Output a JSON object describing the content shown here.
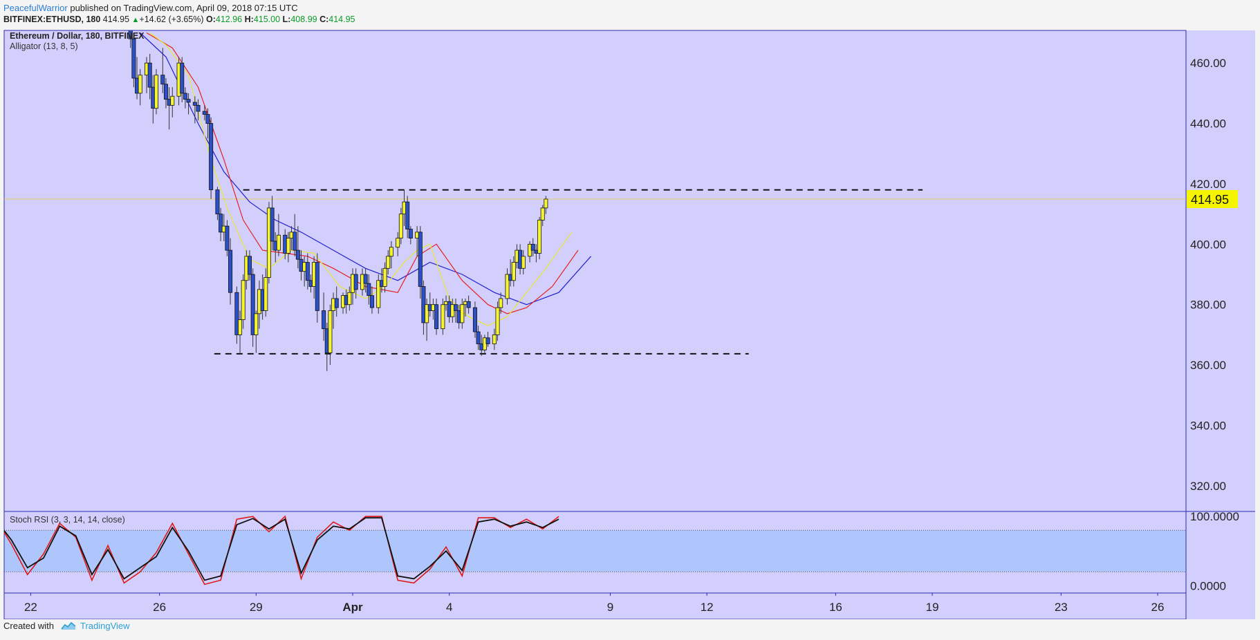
{
  "header": {
    "author": "PeacefulWarrior",
    "published_text": "published on TradingView.com, April 09, 2018 07:15 UTC",
    "symbol": "BITFINEX:ETHUSD, 180",
    "last_price": "414.95",
    "change_arrow": "▲",
    "change": "+14.62 (+3.65%)",
    "o_label": "O:",
    "o_value": "412.96",
    "h_label": "H:",
    "h_value": "415.00",
    "l_label": "L:",
    "l_value": "408.99",
    "c_label": "C:",
    "c_value": "414.95"
  },
  "footer": {
    "created_with": "Created with",
    "brand": "TradingView"
  },
  "colors": {
    "pane_bg": "#d2cffc",
    "stoch_band": "#aec6fb",
    "jaw": "#2020d0",
    "teeth": "#e82020",
    "lips": "#e8e830",
    "candle_up": "#f4f432",
    "candle_down": "#2b50c8",
    "stoch_k": "#101010",
    "stoch_d": "#e01818",
    "price_tag": "#f5f500"
  },
  "chart_data": [
    {
      "type": "candlestick",
      "title": "Ethereum / Dollar, 180, BITFINEX",
      "indicator": "Alligator (13, 8, 5)",
      "x_tick_labels": [
        "22",
        "26",
        "29",
        "Apr",
        "4",
        "9",
        "12",
        "16",
        "19",
        "23",
        "26"
      ],
      "x_tick_days": [
        -10,
        -6,
        -3,
        0,
        3,
        8,
        11,
        15,
        18,
        22,
        25
      ],
      "x_axis_note": "day offsets relative to Apr 1, 2018",
      "y_tick_labels": [
        "460.00",
        "440.00",
        "420.00",
        "400.00",
        "380.00",
        "360.00",
        "340.00",
        "320.00"
      ],
      "y_ticks": [
        460,
        440,
        420,
        400,
        380,
        360,
        340,
        320
      ],
      "ylim": [
        311.5,
        470.8
      ],
      "last_price_label": "414.95",
      "last_price": 414.95,
      "resistance": {
        "value": 418.0,
        "from_day": -3.4,
        "to_day": 17.7
      },
      "support": {
        "value": 363.7,
        "from_day": -4.3,
        "to_day": 12.3
      },
      "ohlc": [
        [
          -6.9,
          475,
          478,
          465,
          468
        ],
        [
          -6.8,
          468,
          470,
          452,
          455
        ],
        [
          -6.7,
          455,
          462,
          448,
          450
        ],
        [
          -6.6,
          450,
          458,
          446,
          456
        ],
        [
          -6.4,
          456,
          462,
          450,
          460
        ],
        [
          -6.3,
          460,
          463,
          448,
          452
        ],
        [
          -6.2,
          452,
          456,
          440,
          445
        ],
        [
          -6.1,
          445,
          458,
          443,
          456
        ],
        [
          -5.9,
          456,
          465,
          450,
          453
        ],
        [
          -5.8,
          453,
          455,
          445,
          448
        ],
        [
          -5.7,
          448,
          452,
          438,
          446
        ],
        [
          -5.6,
          446,
          452,
          442,
          449
        ],
        [
          -5.4,
          449,
          462,
          446,
          460
        ],
        [
          -5.3,
          460,
          462,
          447,
          450
        ],
        [
          -5.2,
          450,
          452,
          445,
          448
        ],
        [
          -5.1,
          448,
          450,
          443,
          447
        ],
        [
          -4.9,
          447,
          449,
          440,
          446
        ],
        [
          -4.8,
          446,
          448,
          441,
          444
        ],
        [
          -4.6,
          444,
          446,
          441,
          443
        ],
        [
          -4.5,
          443,
          445,
          435,
          440
        ],
        [
          -4.4,
          440,
          442,
          415,
          418
        ],
        [
          -4.2,
          418,
          419,
          408,
          410
        ],
        [
          -4.1,
          410,
          412,
          401,
          404
        ],
        [
          -4.0,
          404,
          410,
          401,
          406
        ],
        [
          -3.9,
          406,
          408,
          396,
          398
        ],
        [
          -3.8,
          398,
          402,
          380,
          384
        ],
        [
          -3.6,
          384,
          386,
          367,
          370
        ],
        [
          -3.5,
          370,
          378,
          364,
          375
        ],
        [
          -3.4,
          375,
          390,
          372,
          388
        ],
        [
          -3.3,
          388,
          398,
          385,
          396
        ],
        [
          -3.2,
          396,
          398,
          388,
          390
        ],
        [
          -3.1,
          390,
          392,
          366,
          370
        ],
        [
          -3.0,
          370,
          378,
          364,
          377
        ],
        [
          -2.9,
          377,
          388,
          372,
          385
        ],
        [
          -2.8,
          385,
          390,
          375,
          378
        ],
        [
          -2.7,
          378,
          392,
          376,
          389
        ],
        [
          -2.6,
          389,
          414,
          387,
          412
        ],
        [
          -2.5,
          412,
          416,
          398,
          401
        ],
        [
          -2.4,
          401,
          404,
          394,
          398
        ],
        [
          -2.3,
          398,
          410,
          396,
          403
        ],
        [
          -2.1,
          403,
          405,
          395,
          397
        ],
        [
          -2.0,
          397,
          404,
          394,
          402
        ],
        [
          -1.9,
          402,
          406,
          398,
          404
        ],
        [
          -1.8,
          404,
          410,
          396,
          398
        ],
        [
          -1.7,
          398,
          406,
          392,
          395
        ],
        [
          -1.6,
          395,
          398,
          388,
          391
        ],
        [
          -1.5,
          391,
          396,
          386,
          394
        ],
        [
          -1.4,
          394,
          397,
          385,
          388
        ],
        [
          -1.3,
          388,
          390,
          384,
          386
        ],
        [
          -1.2,
          386,
          396,
          382,
          394
        ],
        [
          -1.1,
          394,
          397,
          374,
          378
        ],
        [
          -0.9,
          378,
          384,
          368,
          372
        ],
        [
          -0.8,
          372,
          374,
          358,
          364
        ],
        [
          -0.7,
          364,
          380,
          360,
          378
        ],
        [
          -0.6,
          378,
          384,
          372,
          382
        ],
        [
          -0.5,
          382,
          386,
          376,
          379
        ],
        [
          -0.3,
          379,
          384,
          377,
          383
        ],
        [
          -0.2,
          383,
          385,
          377,
          380
        ],
        [
          -0.1,
          380,
          386,
          378,
          384
        ],
        [
          0.0,
          384,
          392,
          380,
          390
        ],
        [
          0.1,
          390,
          392,
          382,
          385
        ],
        [
          0.3,
          385,
          392,
          383,
          390
        ],
        [
          0.4,
          390,
          392,
          384,
          387
        ],
        [
          0.5,
          387,
          390,
          380,
          383
        ],
        [
          0.6,
          383,
          386,
          377,
          379
        ],
        [
          0.8,
          379,
          390,
          377,
          388
        ],
        [
          0.9,
          388,
          392,
          384,
          386
        ],
        [
          1.0,
          386,
          394,
          384,
          392
        ],
        [
          1.1,
          392,
          398,
          390,
          396
        ],
        [
          1.2,
          396,
          401,
          392,
          399
        ],
        [
          1.4,
          399,
          404,
          396,
          402
        ],
        [
          1.5,
          402,
          412,
          400,
          410
        ],
        [
          1.6,
          410,
          418,
          406,
          414
        ],
        [
          1.7,
          414,
          416,
          402,
          405
        ],
        [
          1.8,
          405,
          406,
          400,
          402
        ],
        [
          2.0,
          402,
          406,
          396,
          404
        ],
        [
          2.1,
          404,
          406,
          382,
          386
        ],
        [
          2.2,
          386,
          388,
          370,
          374
        ],
        [
          2.3,
          374,
          382,
          368,
          380
        ],
        [
          2.4,
          380,
          384,
          376,
          378
        ],
        [
          2.5,
          378,
          382,
          375,
          380
        ],
        [
          2.6,
          380,
          382,
          370,
          372
        ],
        [
          2.8,
          372,
          382,
          370,
          380
        ],
        [
          2.9,
          380,
          383,
          378,
          381
        ],
        [
          3.0,
          381,
          383,
          374,
          376
        ],
        [
          3.1,
          376,
          382,
          374,
          380
        ],
        [
          3.2,
          380,
          382,
          374,
          378
        ],
        [
          3.3,
          378,
          380,
          372,
          374
        ],
        [
          3.4,
          374,
          382,
          372,
          380
        ],
        [
          3.5,
          380,
          382,
          376,
          381
        ],
        [
          3.6,
          381,
          383,
          377,
          379
        ],
        [
          3.8,
          379,
          381,
          369,
          371
        ],
        [
          3.9,
          371,
          373,
          365,
          367
        ],
        [
          4.0,
          367,
          370,
          363,
          365
        ],
        [
          4.1,
          365,
          370,
          364,
          369
        ],
        [
          4.2,
          369,
          371,
          366,
          367
        ],
        [
          4.4,
          367,
          372,
          365,
          370
        ],
        [
          4.5,
          370,
          381,
          368,
          379
        ],
        [
          4.6,
          379,
          384,
          377,
          382
        ],
        [
          4.8,
          382,
          392,
          380,
          390
        ],
        [
          4.9,
          390,
          395,
          386,
          388
        ],
        [
          5.0,
          388,
          396,
          386,
          394
        ],
        [
          5.1,
          394,
          400,
          392,
          398
        ],
        [
          5.2,
          398,
          400,
          390,
          392
        ],
        [
          5.3,
          392,
          398,
          390,
          396
        ],
        [
          5.5,
          396,
          401,
          394,
          400
        ],
        [
          5.6,
          400,
          402,
          396,
          398
        ],
        [
          5.7,
          398,
          400,
          394,
          397
        ],
        [
          5.8,
          397,
          409,
          395,
          408
        ],
        [
          5.9,
          408,
          413,
          406,
          412
        ],
        [
          6.0,
          412,
          416,
          410,
          414.95
        ]
      ],
      "alligator": {
        "jaw": {
          "x": [
            -6.6,
            -5.8,
            -4.8,
            -4.0,
            -3.2,
            -2.4,
            -1.6,
            -0.6,
            0.4,
            1.4,
            2.4,
            3.4,
            4.4,
            5.4,
            6.4,
            7.4
          ],
          "y": [
            470,
            462,
            440,
            424,
            414,
            408,
            404,
            398,
            392,
            388,
            394,
            390,
            384,
            380,
            384,
            396
          ]
        },
        "teeth": {
          "x": [
            -6.4,
            -5.6,
            -4.8,
            -4.0,
            -3.4,
            -2.8,
            -2.1,
            -1.4,
            -0.6,
            0.4,
            1.4,
            2.0,
            2.6,
            3.4,
            4.2,
            4.8,
            5.4,
            6.2,
            7.0
          ],
          "y": [
            470,
            465,
            452,
            428,
            408,
            398,
            397,
            396,
            392,
            386,
            384,
            396,
            400,
            388,
            380,
            377,
            379,
            386,
            398
          ]
        },
        "lips": {
          "x": [
            -6.3,
            -5.8,
            -5.1,
            -4.4,
            -3.9,
            -3.2,
            -2.6,
            -1.9,
            -1.2,
            -0.4,
            0.4,
            1.0,
            1.6,
            2.0,
            2.4,
            3.0,
            3.6,
            4.2,
            4.8,
            5.4,
            6.0,
            6.8
          ],
          "y": [
            470,
            466,
            456,
            428,
            412,
            395,
            392,
            398,
            397,
            386,
            382,
            386,
            394,
            398,
            400,
            382,
            376,
            373,
            376,
            384,
            392,
            404
          ]
        }
      }
    },
    {
      "type": "line",
      "title": "Stoch RSI (3, 3, 14, 14, close)",
      "y_tick_labels": [
        "100.0000",
        "0.0000"
      ],
      "y_ticks": [
        100,
        0
      ],
      "ylim": [
        -10.5,
        107.2
      ],
      "band": [
        20,
        80
      ],
      "series": [
        {
          "x": [
            -11.1,
            -10.6,
            -10.1,
            -9.6,
            -9.1,
            -8.6,
            -8.1,
            -7.6,
            -7.1,
            -6.6,
            -6.1,
            -5.6,
            -5.1,
            -4.6,
            -4.1,
            -3.6,
            -3.1,
            -2.6,
            -2.1,
            -1.6,
            -1.1,
            -0.6,
            -0.1,
            0.4,
            0.9,
            1.4,
            1.9,
            2.4,
            2.9,
            3.4,
            3.9,
            4.4,
            4.9,
            5.4,
            5.9,
            6.4
          ],
          "y": [
            96,
            66,
            26,
            40,
            86,
            72,
            16,
            52,
            10,
            26,
            42,
            84,
            50,
            8,
            14,
            88,
            97,
            82,
            96,
            18,
            66,
            86,
            82,
            98,
            98,
            14,
            10,
            28,
            50,
            22,
            92,
            96,
            86,
            92,
            84,
            96
          ]
        },
        {
          "x": [
            -11.1,
            -10.6,
            -10.1,
            -9.6,
            -9.1,
            -8.6,
            -8.1,
            -7.6,
            -7.1,
            -6.6,
            -6.1,
            -5.6,
            -5.1,
            -4.6,
            -4.1,
            -3.6,
            -3.1,
            -2.6,
            -2.1,
            -1.6,
            -1.1,
            -0.6,
            -0.1,
            0.4,
            0.9,
            1.4,
            1.9,
            2.4,
            2.9,
            3.4,
            3.9,
            4.4,
            4.9,
            5.4,
            5.9,
            6.4
          ],
          "y": [
            98,
            60,
            16,
            46,
            90,
            70,
            8,
            58,
            4,
            20,
            48,
            90,
            46,
            2,
            8,
            96,
            100,
            78,
            100,
            10,
            70,
            92,
            80,
            100,
            100,
            8,
            4,
            24,
            56,
            14,
            98,
            98,
            84,
            96,
            82,
            100
          ]
        }
      ]
    }
  ]
}
